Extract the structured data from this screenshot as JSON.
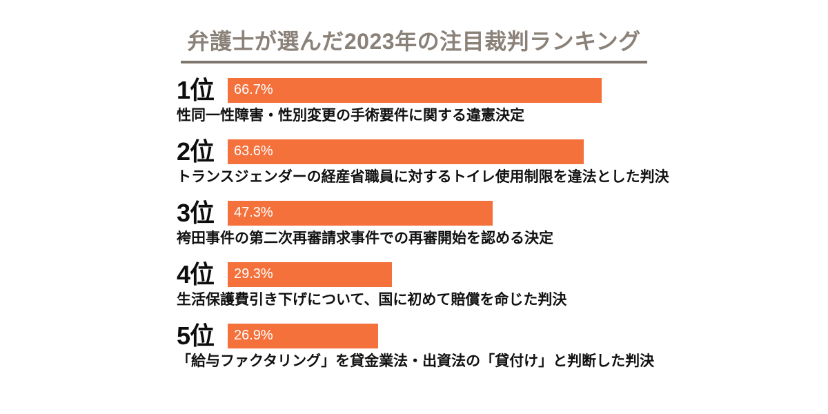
{
  "title": "弁護士が選んだ2023年の注目裁判ランキング",
  "colors": {
    "background": "#FFFFFF",
    "bar": "#F4713C",
    "title_text": "#8A8178",
    "title_underline": "#7E766D",
    "body_text": "#111111",
    "percent_text": "#FFFFFF"
  },
  "chart_data": {
    "type": "bar",
    "orientation": "horizontal",
    "title": "弁護士が選んだ2023年の注目裁判ランキング",
    "unit": "%",
    "xlim": [
      0,
      100
    ],
    "grid": false,
    "legend": false,
    "categories": [
      "1位",
      "2位",
      "3位",
      "4位",
      "5位"
    ],
    "values": [
      66.7,
      63.6,
      47.3,
      29.3,
      26.9
    ],
    "items": [
      {
        "rank": "1位",
        "value": 66.7,
        "percent_label": "66.7%",
        "description": "性同一性障害・性別変更の手術要件に関する違憲決定"
      },
      {
        "rank": "2位",
        "value": 63.6,
        "percent_label": "63.6%",
        "description": "トランスジェンダーの経産省職員に対するトイレ使用制限を違法とした判決"
      },
      {
        "rank": "3位",
        "value": 47.3,
        "percent_label": "47.3%",
        "description": "袴田事件の第二次再審請求事件での再審開始を認める決定"
      },
      {
        "rank": "4位",
        "value": 29.3,
        "percent_label": "29.3%",
        "description": "生活保護費引き下げについて、国に初めて賠償を命じた判決"
      },
      {
        "rank": "5位",
        "value": 26.9,
        "percent_label": "26.9%",
        "description": "「給与ファクタリング」を貸金業法・出資法の「貸付け」と判断した判決"
      }
    ]
  }
}
